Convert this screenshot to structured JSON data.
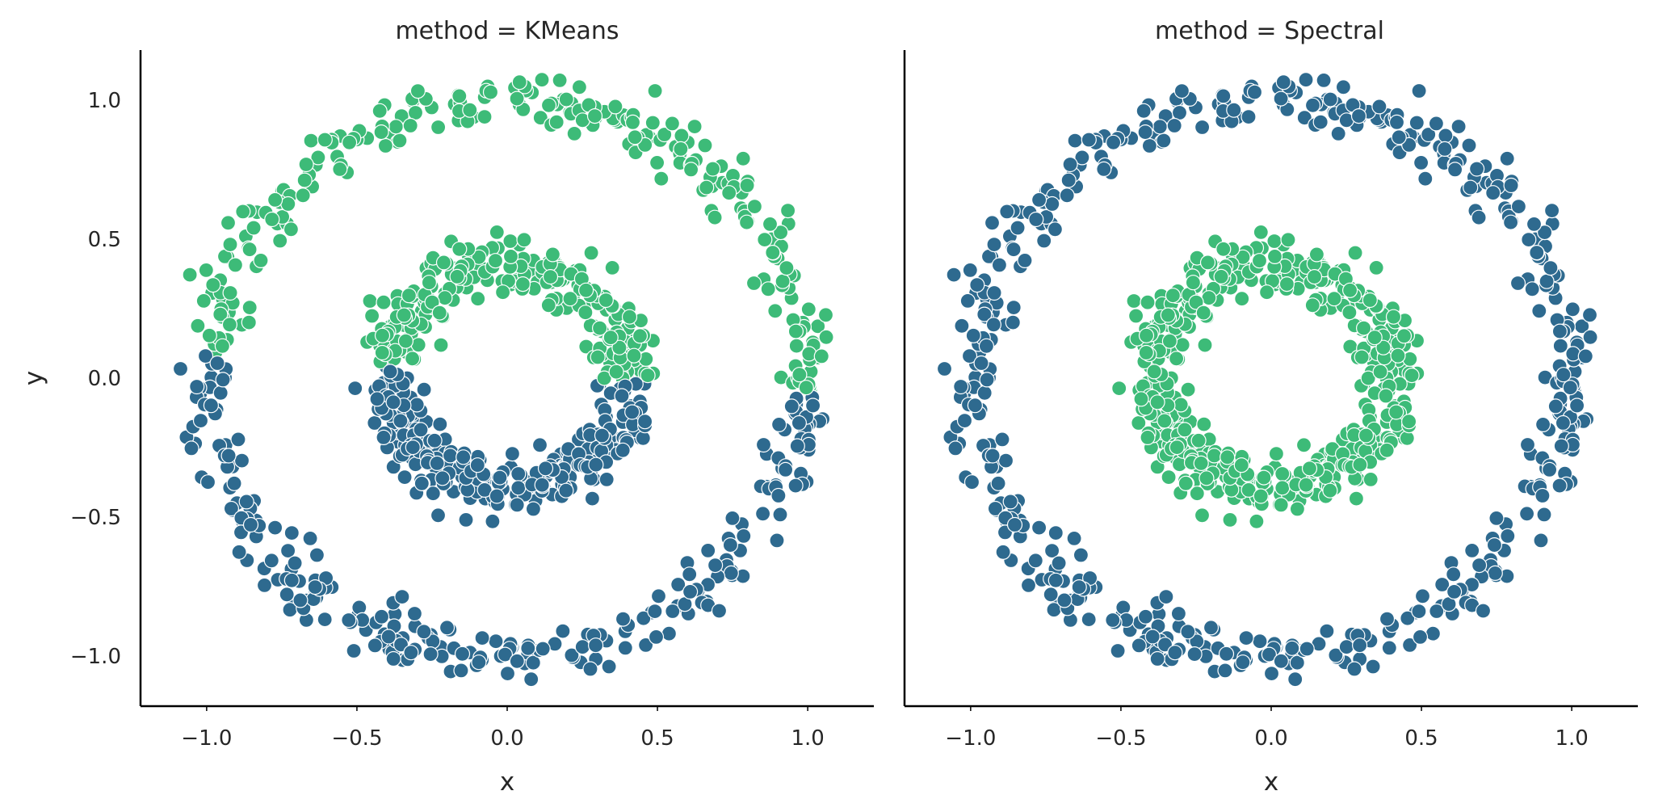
{
  "chart_data": {
    "type": "scatter",
    "colors": {
      "cluster_0": "#2e6a8f",
      "cluster_1": "#3dbb78",
      "axis": "#000000"
    },
    "xlabel": "x",
    "ylabel": "y",
    "xlim": [
      -1.22,
      1.22
    ],
    "ylim": [
      -1.18,
      1.18
    ],
    "xticks": [
      -1.0,
      -0.5,
      0.0,
      0.5,
      1.0
    ],
    "xtick_labels": [
      "−1.0",
      "−0.5",
      "0.0",
      "0.5",
      "1.0"
    ],
    "yticks": [
      -1.0,
      -0.5,
      0.0,
      0.5,
      1.0
    ],
    "ytick_labels": [
      "−1.0",
      "−0.5",
      "0.0",
      "0.5",
      "1.0"
    ],
    "grid": false,
    "dataset": {
      "description_of_points": "two noisy concentric circles, outer radius ~1.0, inner radius ~0.4",
      "outer_radius": 1.0,
      "inner_radius": 0.4,
      "noise": 0.05,
      "points_per_ring": 500
    },
    "panels": [
      {
        "title": "method = KMeans",
        "assignment": "split by y: points with y >= ~0 (plus slight tilt) are cluster_1 (green), rest cluster_0 (blue)"
      },
      {
        "title": "method = Spectral",
        "assignment": "split by ring: outer ring cluster_0 (blue), inner ring cluster_1 (green)"
      }
    ]
  }
}
